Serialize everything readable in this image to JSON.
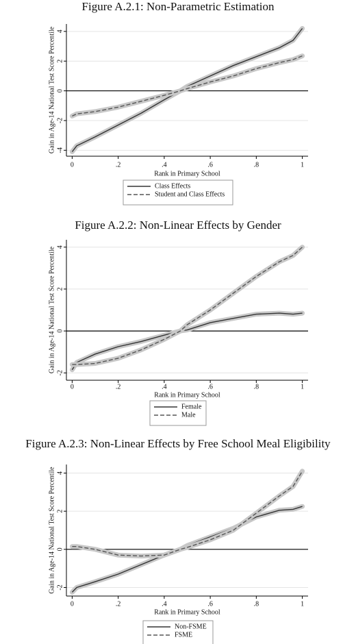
{
  "chart_data": [
    {
      "type": "line",
      "title": "Figure A.2.1: Non-Parametric Estimation",
      "x_label": "Rank in Primary School",
      "y_label": "Gain in Age-14 National Test Score Percentile",
      "x": [
        0,
        0.02,
        0.1,
        0.2,
        0.3,
        0.4,
        0.47,
        0.5,
        0.6,
        0.7,
        0.8,
        0.9,
        0.96,
        1
      ],
      "series": [
        {
          "name": "Class Effects",
          "color": "#333333",
          "dashed": false,
          "values": [
            -4.1,
            -3.7,
            -3.1,
            -2.3,
            -1.5,
            -0.6,
            0,
            0.3,
            1.0,
            1.7,
            2.3,
            2.9,
            3.4,
            4.2
          ]
        },
        {
          "name": "Student and Class Effects",
          "color": "#555555",
          "dashed": true,
          "values": [
            -1.7,
            -1.55,
            -1.4,
            -1.1,
            -0.7,
            -0.3,
            0,
            0.15,
            0.6,
            1.0,
            1.5,
            1.9,
            2.1,
            2.35
          ]
        }
      ],
      "xlim": [
        -0.025,
        1.025
      ],
      "xticks": [
        0,
        {
          "value": 0.2,
          "label": ".2"
        },
        {
          "value": 0.4,
          "label": ".4"
        },
        {
          "value": 0.6,
          "label": ".6"
        },
        {
          "value": 0.8,
          "label": ".8"
        },
        1
      ],
      "ylim": [
        -4.4,
        4.5
      ],
      "yticks": [
        -4,
        -2,
        0,
        2,
        4
      ],
      "reference_line": 0,
      "grid": true,
      "legend": "bottom"
    },
    {
      "type": "line",
      "title": "Figure A.2.2: Non-Linear Effects by Gender",
      "x_label": "Rank in Primary School",
      "y_label": "Gain in Age-14 National Test Score Percentile",
      "x": [
        0,
        0.02,
        0.1,
        0.2,
        0.3,
        0.4,
        0.47,
        0.5,
        0.6,
        0.7,
        0.8,
        0.9,
        0.96,
        1
      ],
      "series": [
        {
          "name": "Female",
          "color": "#333333",
          "dashed": false,
          "values": [
            -1.85,
            -1.5,
            -1.1,
            -0.75,
            -0.5,
            -0.2,
            0,
            0.05,
            0.4,
            0.6,
            0.8,
            0.85,
            0.8,
            0.85
          ]
        },
        {
          "name": "Male",
          "color": "#555555",
          "dashed": true,
          "values": [
            -1.6,
            -1.6,
            -1.55,
            -1.3,
            -0.9,
            -0.4,
            0,
            0.3,
            1.0,
            1.8,
            2.6,
            3.3,
            3.6,
            4.0
          ]
        }
      ],
      "xlim": [
        -0.025,
        1.025
      ],
      "xticks": [
        0,
        {
          "value": 0.2,
          "label": ".2"
        },
        {
          "value": 0.4,
          "label": ".4"
        },
        {
          "value": 0.6,
          "label": ".6"
        },
        {
          "value": 0.8,
          "label": ".8"
        },
        1
      ],
      "ylim": [
        -2.35,
        4.35
      ],
      "yticks": [
        -2,
        0,
        2,
        4
      ],
      "reference_line": 0,
      "grid": true,
      "legend": "bottom"
    },
    {
      "type": "line",
      "title": "Figure A.2.3: Non-Linear Effects by Free School Meal Eligibility",
      "x_label": "Rank in Primary School",
      "y_label": "Gain in Age-14 National Test Score Percentile",
      "x": [
        0,
        0.02,
        0.1,
        0.2,
        0.3,
        0.4,
        0.47,
        0.5,
        0.6,
        0.7,
        0.8,
        0.9,
        0.96,
        1
      ],
      "series": [
        {
          "name": "Non-FSME",
          "color": "#333333",
          "dashed": false,
          "values": [
            -2.25,
            -2.0,
            -1.7,
            -1.3,
            -0.8,
            -0.3,
            0,
            0.2,
            0.65,
            1.1,
            1.7,
            2.05,
            2.1,
            2.25
          ]
        },
        {
          "name": "FSME",
          "color": "#555555",
          "dashed": true,
          "values": [
            0.15,
            0.15,
            0,
            -0.3,
            -0.35,
            -0.3,
            0,
            0.1,
            0.5,
            1.0,
            1.9,
            2.8,
            3.3,
            4.1
          ]
        }
      ],
      "xlim": [
        -0.025,
        1.025
      ],
      "xticks": [
        0,
        {
          "value": 0.2,
          "label": ".2"
        },
        {
          "value": 0.4,
          "label": ".4"
        },
        {
          "value": 0.6,
          "label": ".6"
        },
        {
          "value": 0.8,
          "label": ".8"
        },
        1
      ],
      "ylim": [
        -2.45,
        4.45
      ],
      "yticks": [
        -2,
        0,
        2,
        4
      ],
      "reference_line": 0,
      "grid": true,
      "legend": "bottom"
    }
  ]
}
